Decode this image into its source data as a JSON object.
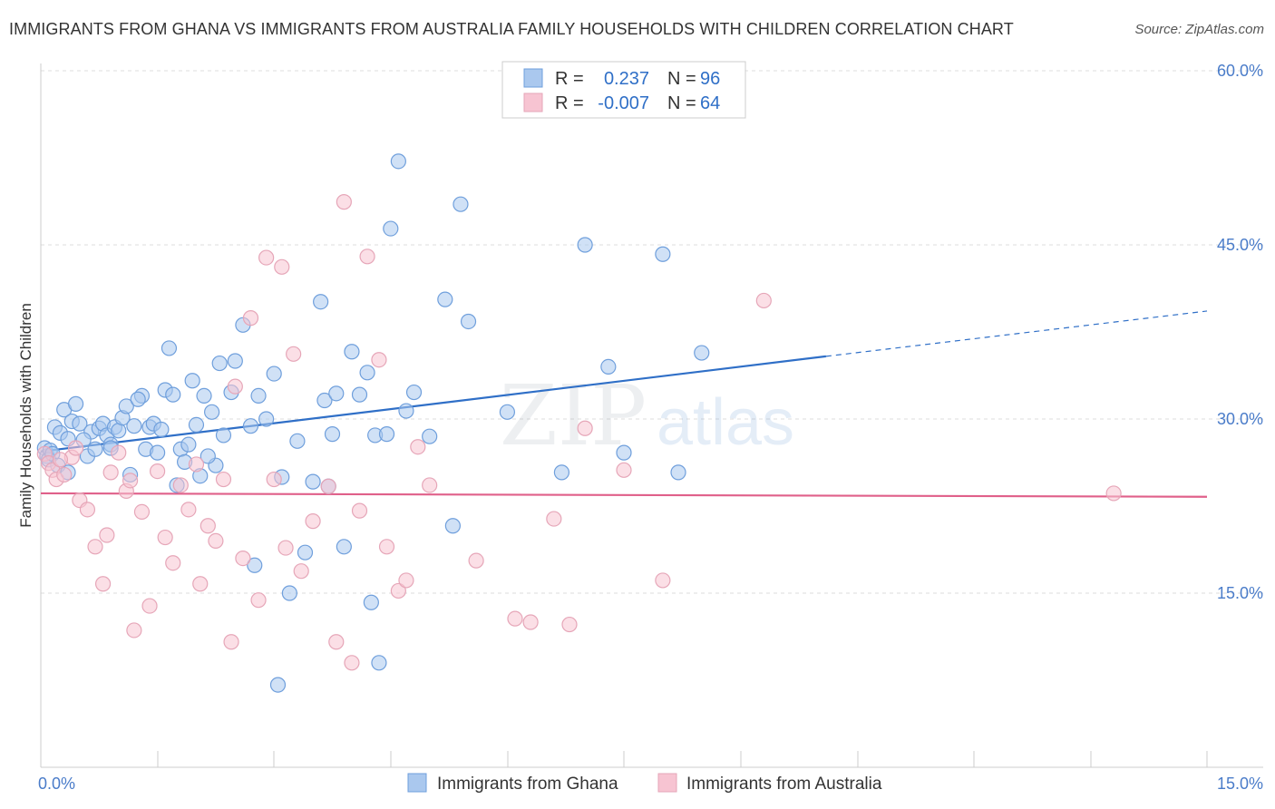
{
  "header": {
    "title": "IMMIGRANTS FROM GHANA VS IMMIGRANTS FROM AUSTRALIA FAMILY HOUSEHOLDS WITH CHILDREN CORRELATION CHART",
    "source": "Source: ZipAtlas.com"
  },
  "watermark": {
    "zip": "ZIP",
    "atlas": "atlas"
  },
  "chart_data": {
    "type": "scatter",
    "title": "IMMIGRANTS FROM GHANA VS IMMIGRANTS FROM AUSTRALIA FAMILY HOUSEHOLDS WITH CHILDREN CORRELATION CHART",
    "ylabel": "Family Households with Children",
    "xlim": [
      0,
      15
    ],
    "ylim": [
      0,
      63
    ],
    "x_ticks": [
      "0.0%",
      "15.0%"
    ],
    "y_ticks": [
      {
        "value": 15,
        "label": "15.0%"
      },
      {
        "value": 30,
        "label": "30.0%"
      },
      {
        "value": 45,
        "label": "45.0%"
      },
      {
        "value": 60,
        "label": "60.0%"
      }
    ],
    "grid": true,
    "legend_position": "top-center",
    "series": [
      {
        "name": "Immigrants from Ghana",
        "color": "#6f9fdc",
        "fill": "#aac8ee",
        "line_color": "#2f6fc7",
        "R": "0.237",
        "N": "96",
        "trend": {
          "x0": 0.0,
          "y0": 27.2,
          "x1": 10.1,
          "y1": 35.4,
          "x_end": 15.0,
          "y_end": 39.3
        },
        "points": [
          [
            0.05,
            27.5
          ],
          [
            0.08,
            26.8
          ],
          [
            0.12,
            27.3
          ],
          [
            0.1,
            26.5
          ],
          [
            0.15,
            27.0
          ],
          [
            0.18,
            29.3
          ],
          [
            0.25,
            28.8
          ],
          [
            0.3,
            30.8
          ],
          [
            0.35,
            28.3
          ],
          [
            0.4,
            29.8
          ],
          [
            0.45,
            31.3
          ],
          [
            0.5,
            29.6
          ],
          [
            0.6,
            26.8
          ],
          [
            0.65,
            28.9
          ],
          [
            0.7,
            27.4
          ],
          [
            0.75,
            29.2
          ],
          [
            0.8,
            29.6
          ],
          [
            0.85,
            28.6
          ],
          [
            0.9,
            27.8
          ],
          [
            0.95,
            29.3
          ],
          [
            1.0,
            29.0
          ],
          [
            1.05,
            30.1
          ],
          [
            1.1,
            31.1
          ],
          [
            1.15,
            25.2
          ],
          [
            1.2,
            29.4
          ],
          [
            1.3,
            32.0
          ],
          [
            1.35,
            27.4
          ],
          [
            1.4,
            29.3
          ],
          [
            1.45,
            29.6
          ],
          [
            1.5,
            27.1
          ],
          [
            1.55,
            29.1
          ],
          [
            1.6,
            32.5
          ],
          [
            1.65,
            36.1
          ],
          [
            1.7,
            32.1
          ],
          [
            1.75,
            24.3
          ],
          [
            1.8,
            27.4
          ],
          [
            1.85,
            26.3
          ],
          [
            1.9,
            27.8
          ],
          [
            1.95,
            33.3
          ],
          [
            2.0,
            29.5
          ],
          [
            2.05,
            25.1
          ],
          [
            2.1,
            32.0
          ],
          [
            2.2,
            30.6
          ],
          [
            2.25,
            26.0
          ],
          [
            2.3,
            34.8
          ],
          [
            2.35,
            28.6
          ],
          [
            2.45,
            32.3
          ],
          [
            2.5,
            35.0
          ],
          [
            2.6,
            38.1
          ],
          [
            2.7,
            29.4
          ],
          [
            2.75,
            17.4
          ],
          [
            2.8,
            32.0
          ],
          [
            2.9,
            30.0
          ],
          [
            3.0,
            33.9
          ],
          [
            3.1,
            25.0
          ],
          [
            3.2,
            15.0
          ],
          [
            3.3,
            28.1
          ],
          [
            3.4,
            18.5
          ],
          [
            3.5,
            24.6
          ],
          [
            3.6,
            40.1
          ],
          [
            3.65,
            31.6
          ],
          [
            3.7,
            24.2
          ],
          [
            3.75,
            28.7
          ],
          [
            3.8,
            32.2
          ],
          [
            3.9,
            19.0
          ],
          [
            4.0,
            35.8
          ],
          [
            4.1,
            32.1
          ],
          [
            4.2,
            34.0
          ],
          [
            4.25,
            14.2
          ],
          [
            4.3,
            28.6
          ],
          [
            4.35,
            9.0
          ],
          [
            4.5,
            46.4
          ],
          [
            4.6,
            52.2
          ],
          [
            4.7,
            30.7
          ],
          [
            4.8,
            32.3
          ],
          [
            5.0,
            28.5
          ],
          [
            5.2,
            40.3
          ],
          [
            5.3,
            20.8
          ],
          [
            5.4,
            48.5
          ],
          [
            5.5,
            38.4
          ],
          [
            6.0,
            30.6
          ],
          [
            6.7,
            25.4
          ],
          [
            7.0,
            45.0
          ],
          [
            7.3,
            34.5
          ],
          [
            7.5,
            27.1
          ],
          [
            8.0,
            44.2
          ],
          [
            8.2,
            25.4
          ],
          [
            8.5,
            35.7
          ],
          [
            0.22,
            26.0
          ],
          [
            0.55,
            28.2
          ],
          [
            1.25,
            31.7
          ],
          [
            2.15,
            26.8
          ],
          [
            3.05,
            7.1
          ],
          [
            4.45,
            28.7
          ],
          [
            0.9,
            27.5
          ],
          [
            0.35,
            25.4
          ]
        ]
      },
      {
        "name": "Immigrants from Australia",
        "color": "#e6a6b8",
        "fill": "#f7c4d2",
        "line_color": "#e0608a",
        "R": "-0.007",
        "N": "64",
        "trend": {
          "x0": 0.0,
          "y0": 23.6,
          "x1": 15.0,
          "y1": 23.3
        },
        "points": [
          [
            0.05,
            27.0
          ],
          [
            0.1,
            26.2
          ],
          [
            0.15,
            25.6
          ],
          [
            0.2,
            24.8
          ],
          [
            0.3,
            25.2
          ],
          [
            0.4,
            26.7
          ],
          [
            0.5,
            23.0
          ],
          [
            0.6,
            22.2
          ],
          [
            0.7,
            19.0
          ],
          [
            0.8,
            15.8
          ],
          [
            0.85,
            20.0
          ],
          [
            0.9,
            25.4
          ],
          [
            1.0,
            27.1
          ],
          [
            1.1,
            23.8
          ],
          [
            1.2,
            11.8
          ],
          [
            1.3,
            22.0
          ],
          [
            1.4,
            13.9
          ],
          [
            1.5,
            25.5
          ],
          [
            1.6,
            19.8
          ],
          [
            1.7,
            17.6
          ],
          [
            1.8,
            24.3
          ],
          [
            1.9,
            22.2
          ],
          [
            2.0,
            26.1
          ],
          [
            2.05,
            15.8
          ],
          [
            2.15,
            20.8
          ],
          [
            2.25,
            19.5
          ],
          [
            2.35,
            24.8
          ],
          [
            2.45,
            10.8
          ],
          [
            2.6,
            18.0
          ],
          [
            2.7,
            38.7
          ],
          [
            2.8,
            14.4
          ],
          [
            2.9,
            43.9
          ],
          [
            3.0,
            24.8
          ],
          [
            3.1,
            43.1
          ],
          [
            3.15,
            18.9
          ],
          [
            3.25,
            35.6
          ],
          [
            3.35,
            16.9
          ],
          [
            3.5,
            21.2
          ],
          [
            3.7,
            24.2
          ],
          [
            3.8,
            10.8
          ],
          [
            3.9,
            48.7
          ],
          [
            4.0,
            9.0
          ],
          [
            4.1,
            22.1
          ],
          [
            4.2,
            44.0
          ],
          [
            4.35,
            35.1
          ],
          [
            4.45,
            19.0
          ],
          [
            4.6,
            15.2
          ],
          [
            4.7,
            16.1
          ],
          [
            4.85,
            27.6
          ],
          [
            5.0,
            24.3
          ],
          [
            5.6,
            17.8
          ],
          [
            6.1,
            12.8
          ],
          [
            6.3,
            12.5
          ],
          [
            6.6,
            21.4
          ],
          [
            6.8,
            12.3
          ],
          [
            7.0,
            29.2
          ],
          [
            7.5,
            25.6
          ],
          [
            8.0,
            16.1
          ],
          [
            9.3,
            40.2
          ],
          [
            13.8,
            23.6
          ],
          [
            0.25,
            26.5
          ],
          [
            0.45,
            27.5
          ],
          [
            1.15,
            24.7
          ],
          [
            2.5,
            32.8
          ]
        ]
      }
    ]
  },
  "legend": {
    "items": [
      {
        "r_label": "R =",
        "r_value": "0.237",
        "n_label": "N =",
        "n_value": "96"
      },
      {
        "r_label": "R =",
        "r_value": "-0.007",
        "n_label": "N =",
        "n_value": "64"
      }
    ]
  },
  "bottom_legend": [
    "Immigrants from Ghana",
    "Immigrants from Australia"
  ]
}
